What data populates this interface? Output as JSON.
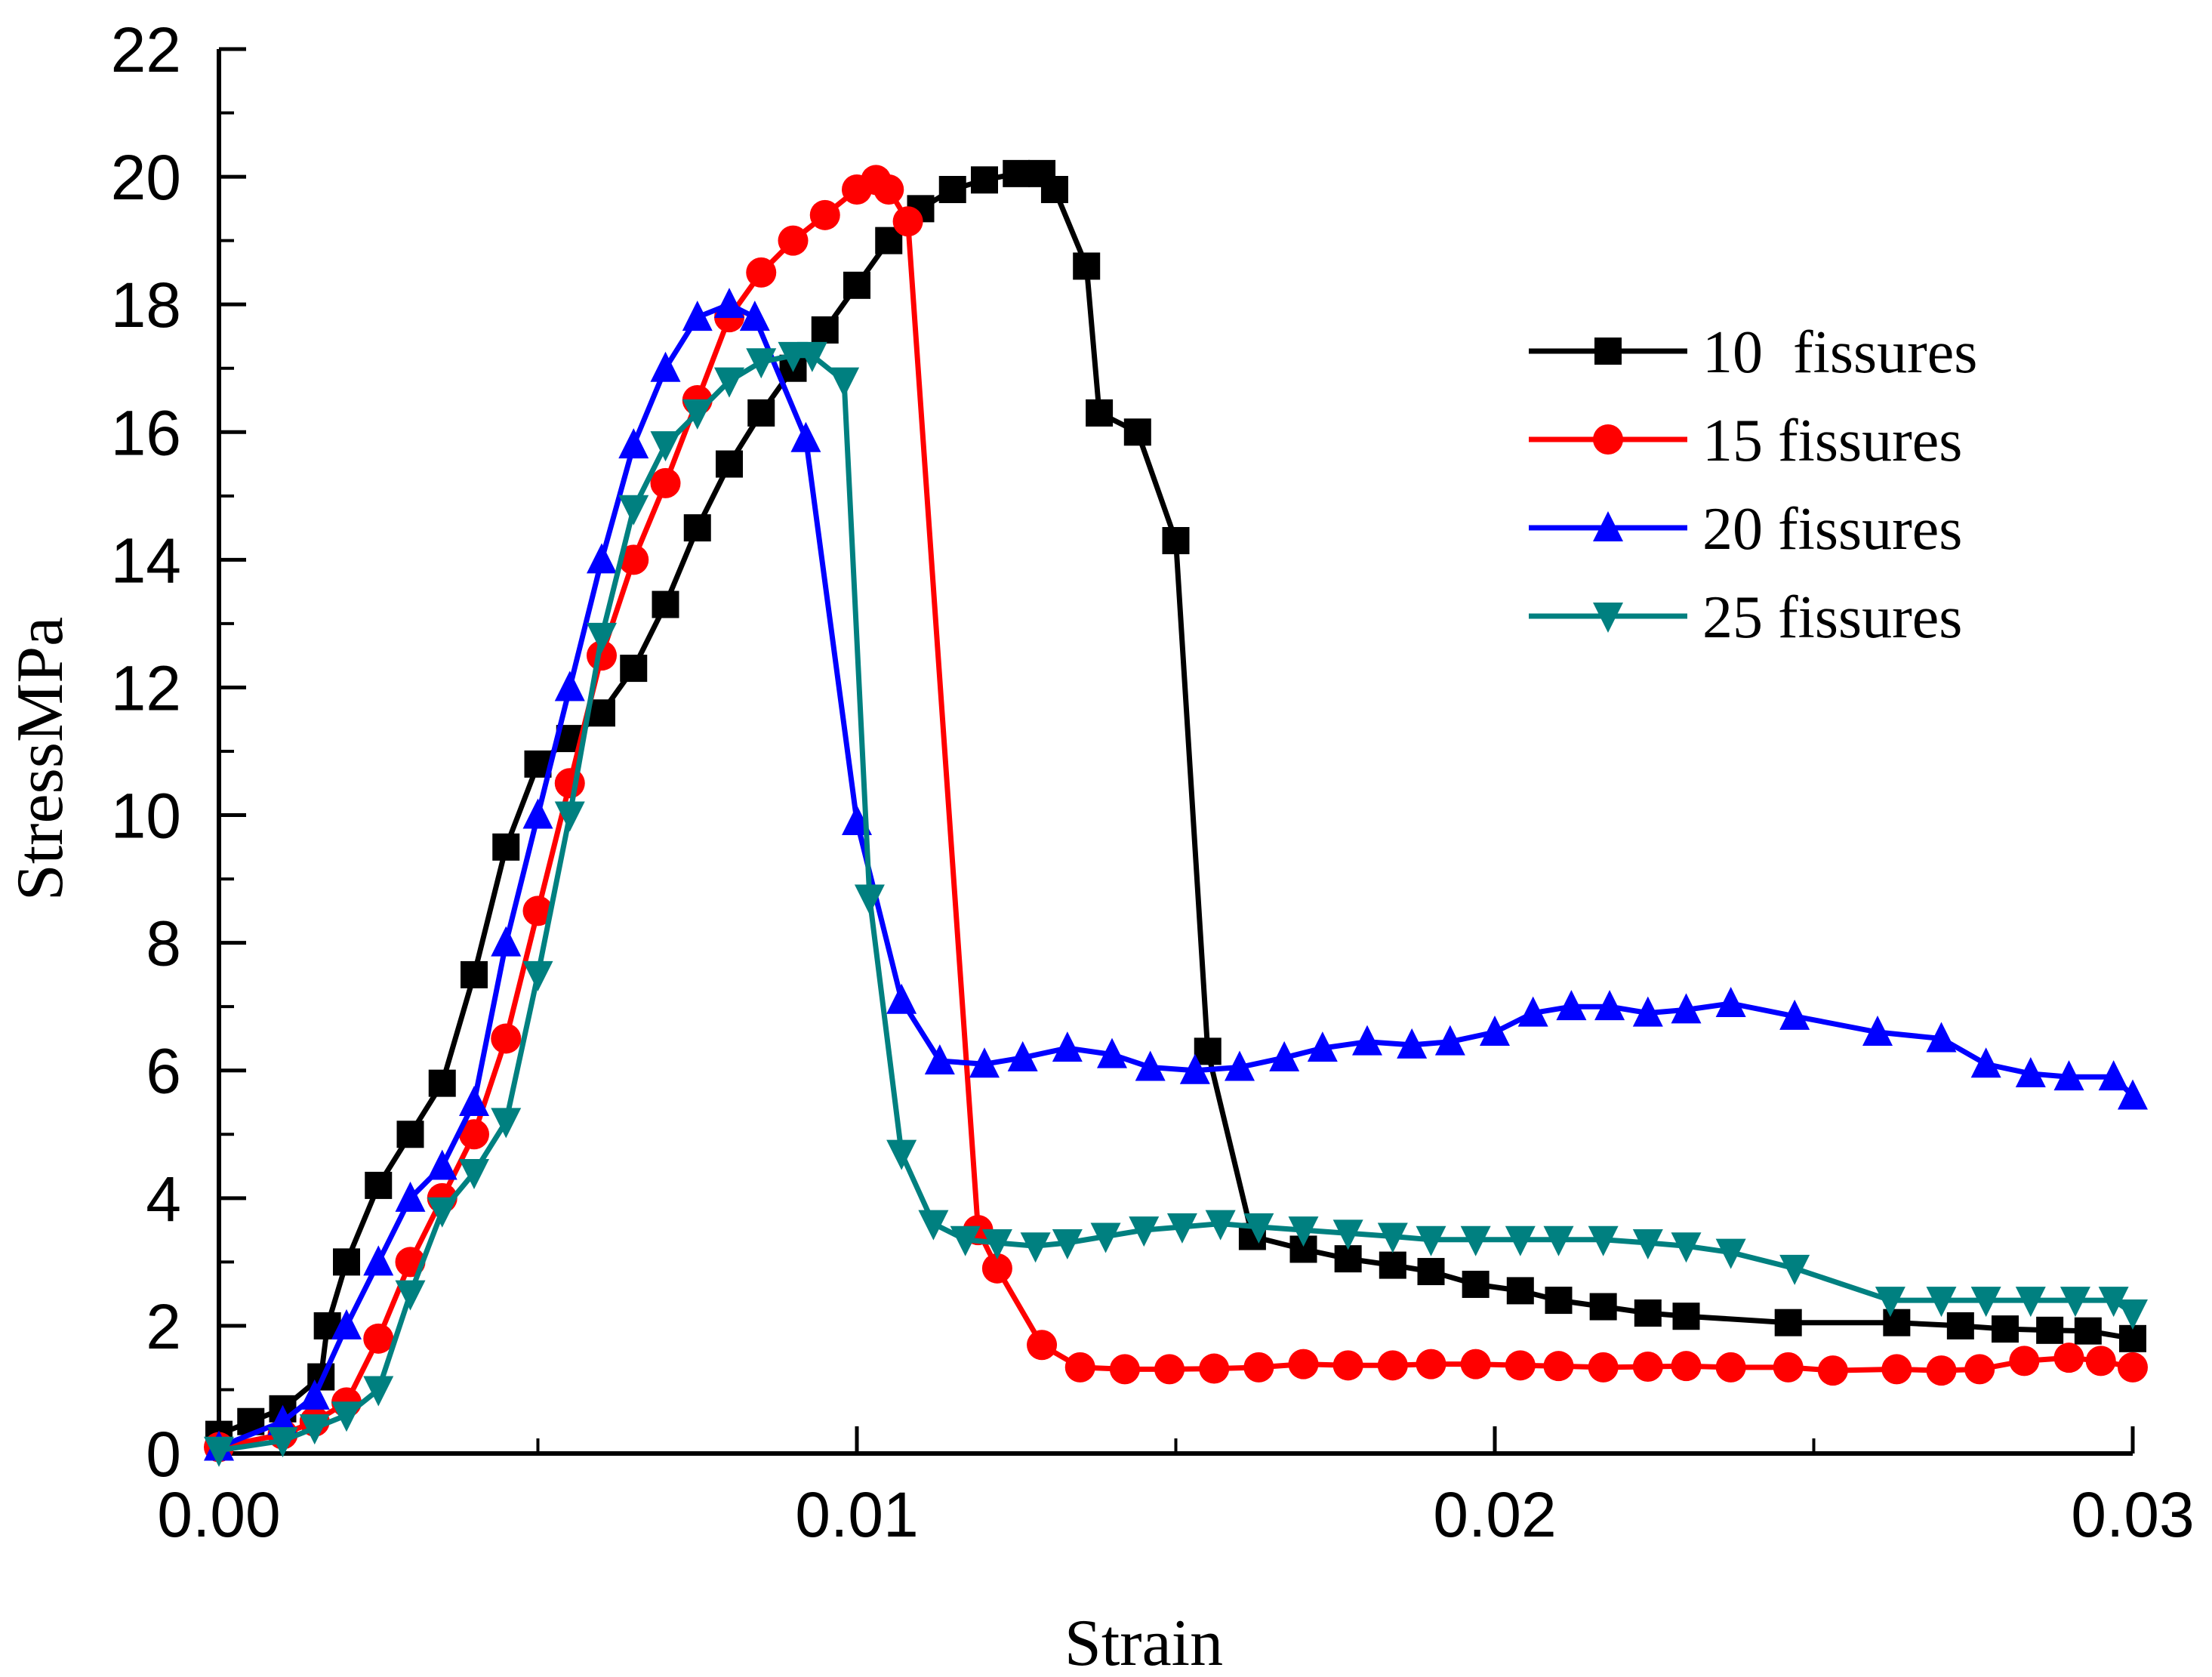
{
  "chart_data": {
    "type": "line",
    "xlabel": "Strain",
    "ylabel": "StressMPa",
    "xlim": [
      0,
      0.03
    ],
    "ylim": [
      0,
      22
    ],
    "x_ticks": [
      "0.00",
      "0.01",
      "0.02",
      "0.03"
    ],
    "y_ticks": [
      "0",
      "2",
      "4",
      "6",
      "8",
      "10",
      "12",
      "14",
      "16",
      "18",
      "20",
      "22"
    ],
    "grid": false,
    "legend_position": "top-right",
    "series": [
      {
        "name": "10  fissures",
        "color": "#000000",
        "marker": "square",
        "points": [
          [
            0,
            0.3
          ],
          [
            0.0005,
            0.5
          ],
          [
            0.001,
            0.7
          ],
          [
            0.0016,
            1.2
          ],
          [
            0.0017,
            2.0
          ],
          [
            0.002,
            3.0
          ],
          [
            0.0025,
            4.2
          ],
          [
            0.003,
            5.0
          ],
          [
            0.0035,
            5.8
          ],
          [
            0.004,
            7.5
          ],
          [
            0.0045,
            9.5
          ],
          [
            0.005,
            10.8
          ],
          [
            0.0055,
            11.2
          ],
          [
            0.006,
            11.6
          ],
          [
            0.0065,
            12.3
          ],
          [
            0.007,
            13.3
          ],
          [
            0.0075,
            14.5
          ],
          [
            0.008,
            15.5
          ],
          [
            0.0085,
            16.3
          ],
          [
            0.009,
            17.0
          ],
          [
            0.0095,
            17.6
          ],
          [
            0.01,
            18.3
          ],
          [
            0.0105,
            19.0
          ],
          [
            0.011,
            19.5
          ],
          [
            0.0115,
            19.8
          ],
          [
            0.012,
            19.95
          ],
          [
            0.0125,
            20.05
          ],
          [
            0.0129,
            20.05
          ],
          [
            0.0131,
            19.8
          ],
          [
            0.0136,
            18.6
          ],
          [
            0.0138,
            16.3
          ],
          [
            0.0144,
            16.0
          ],
          [
            0.015,
            14.3
          ],
          [
            0.0155,
            6.3
          ],
          [
            0.0162,
            3.4
          ],
          [
            0.017,
            3.2
          ],
          [
            0.0177,
            3.05
          ],
          [
            0.0184,
            2.95
          ],
          [
            0.019,
            2.85
          ],
          [
            0.0197,
            2.65
          ],
          [
            0.0204,
            2.55
          ],
          [
            0.021,
            2.4
          ],
          [
            0.0217,
            2.3
          ],
          [
            0.0224,
            2.2
          ],
          [
            0.023,
            2.15
          ],
          [
            0.0246,
            2.05
          ],
          [
            0.0263,
            2.05
          ],
          [
            0.0273,
            2.0
          ],
          [
            0.028,
            1.95
          ],
          [
            0.0287,
            1.93
          ],
          [
            0.0293,
            1.92
          ],
          [
            0.03,
            1.8
          ]
        ]
      },
      {
        "name": "15 fissures",
        "color": "#ff0000",
        "marker": "circle",
        "points": [
          [
            0,
            0.1
          ],
          [
            0.001,
            0.3
          ],
          [
            0.0015,
            0.5
          ],
          [
            0.002,
            0.8
          ],
          [
            0.0025,
            1.8
          ],
          [
            0.003,
            3.0
          ],
          [
            0.0035,
            4.0
          ],
          [
            0.004,
            5.0
          ],
          [
            0.0045,
            6.5
          ],
          [
            0.005,
            8.5
          ],
          [
            0.0055,
            10.5
          ],
          [
            0.006,
            12.5
          ],
          [
            0.0065,
            14.0
          ],
          [
            0.007,
            15.2
          ],
          [
            0.0075,
            16.5
          ],
          [
            0.008,
            17.8
          ],
          [
            0.0085,
            18.5
          ],
          [
            0.009,
            19.0
          ],
          [
            0.0095,
            19.4
          ],
          [
            0.01,
            19.8
          ],
          [
            0.0103,
            19.95
          ],
          [
            0.0105,
            19.8
          ],
          [
            0.0108,
            19.3
          ],
          [
            0.0119,
            3.5
          ],
          [
            0.0122,
            2.9
          ],
          [
            0.0129,
            1.7
          ],
          [
            0.0135,
            1.35
          ],
          [
            0.0142,
            1.32
          ],
          [
            0.0149,
            1.32
          ],
          [
            0.0156,
            1.33
          ],
          [
            0.0163,
            1.35
          ],
          [
            0.017,
            1.4
          ],
          [
            0.0177,
            1.38
          ],
          [
            0.0184,
            1.38
          ],
          [
            0.019,
            1.4
          ],
          [
            0.0197,
            1.4
          ],
          [
            0.0204,
            1.38
          ],
          [
            0.021,
            1.37
          ],
          [
            0.0217,
            1.35
          ],
          [
            0.0224,
            1.36
          ],
          [
            0.023,
            1.37
          ],
          [
            0.0237,
            1.35
          ],
          [
            0.0246,
            1.35
          ],
          [
            0.0253,
            1.3
          ],
          [
            0.0263,
            1.32
          ],
          [
            0.027,
            1.3
          ],
          [
            0.0276,
            1.32
          ],
          [
            0.0283,
            1.45
          ],
          [
            0.029,
            1.5
          ],
          [
            0.0295,
            1.45
          ],
          [
            0.03,
            1.35
          ]
        ]
      },
      {
        "name": "20 fissures",
        "color": "#0000ff",
        "marker": "triangle-up",
        "points": [
          [
            0,
            0.1
          ],
          [
            0.001,
            0.5
          ],
          [
            0.0015,
            0.9
          ],
          [
            0.002,
            2.0
          ],
          [
            0.0025,
            3.0
          ],
          [
            0.003,
            4.0
          ],
          [
            0.0035,
            4.5
          ],
          [
            0.004,
            5.5
          ],
          [
            0.0045,
            8.0
          ],
          [
            0.005,
            10.0
          ],
          [
            0.0055,
            12.0
          ],
          [
            0.006,
            14.0
          ],
          [
            0.0065,
            15.8
          ],
          [
            0.007,
            17.0
          ],
          [
            0.0075,
            17.8
          ],
          [
            0.008,
            18.0
          ],
          [
            0.0084,
            17.8
          ],
          [
            0.0092,
            15.9
          ],
          [
            0.01,
            9.9
          ],
          [
            0.0107,
            7.1
          ],
          [
            0.0113,
            6.15
          ],
          [
            0.012,
            6.1
          ],
          [
            0.0126,
            6.2
          ],
          [
            0.0133,
            6.35
          ],
          [
            0.014,
            6.25
          ],
          [
            0.0146,
            6.05
          ],
          [
            0.0153,
            6.0
          ],
          [
            0.016,
            6.05
          ],
          [
            0.0167,
            6.2
          ],
          [
            0.0173,
            6.35
          ],
          [
            0.018,
            6.45
          ],
          [
            0.0187,
            6.4
          ],
          [
            0.0193,
            6.45
          ],
          [
            0.02,
            6.6
          ],
          [
            0.0206,
            6.9
          ],
          [
            0.0212,
            7.0
          ],
          [
            0.0218,
            7.0
          ],
          [
            0.0224,
            6.9
          ],
          [
            0.023,
            6.95
          ],
          [
            0.0237,
            7.05
          ],
          [
            0.0247,
            6.85
          ],
          [
            0.026,
            6.6
          ],
          [
            0.027,
            6.5
          ],
          [
            0.0277,
            6.1
          ],
          [
            0.0284,
            5.95
          ],
          [
            0.029,
            5.9
          ],
          [
            0.0297,
            5.9
          ],
          [
            0.03,
            5.6
          ]
        ]
      },
      {
        "name": "25 fissures",
        "color": "#008080",
        "marker": "triangle-down",
        "points": [
          [
            0,
            0.05
          ],
          [
            0.001,
            0.2
          ],
          [
            0.0015,
            0.4
          ],
          [
            0.002,
            0.6
          ],
          [
            0.0025,
            1.0
          ],
          [
            0.003,
            2.5
          ],
          [
            0.0035,
            3.8
          ],
          [
            0.004,
            4.4
          ],
          [
            0.0045,
            5.2
          ],
          [
            0.005,
            7.5
          ],
          [
            0.0055,
            10.0
          ],
          [
            0.006,
            12.8
          ],
          [
            0.0065,
            14.8
          ],
          [
            0.007,
            15.8
          ],
          [
            0.0075,
            16.3
          ],
          [
            0.008,
            16.8
          ],
          [
            0.0085,
            17.1
          ],
          [
            0.009,
            17.2
          ],
          [
            0.0093,
            17.2
          ],
          [
            0.0098,
            16.8
          ],
          [
            0.0102,
            8.7
          ],
          [
            0.0107,
            4.7
          ],
          [
            0.0112,
            3.6
          ],
          [
            0.0117,
            3.35
          ],
          [
            0.0122,
            3.3
          ],
          [
            0.0128,
            3.25
          ],
          [
            0.0133,
            3.3
          ],
          [
            0.0139,
            3.4
          ],
          [
            0.0145,
            3.5
          ],
          [
            0.0151,
            3.55
          ],
          [
            0.0157,
            3.6
          ],
          [
            0.0163,
            3.55
          ],
          [
            0.017,
            3.5
          ],
          [
            0.0177,
            3.45
          ],
          [
            0.0184,
            3.4
          ],
          [
            0.019,
            3.35
          ],
          [
            0.0197,
            3.35
          ],
          [
            0.0204,
            3.35
          ],
          [
            0.021,
            3.35
          ],
          [
            0.0217,
            3.35
          ],
          [
            0.0224,
            3.3
          ],
          [
            0.023,
            3.25
          ],
          [
            0.0237,
            3.15
          ],
          [
            0.0247,
            2.9
          ],
          [
            0.0262,
            2.4
          ],
          [
            0.027,
            2.4
          ],
          [
            0.0277,
            2.4
          ],
          [
            0.0284,
            2.4
          ],
          [
            0.0291,
            2.4
          ],
          [
            0.0297,
            2.4
          ],
          [
            0.03,
            2.2
          ]
        ]
      }
    ]
  }
}
